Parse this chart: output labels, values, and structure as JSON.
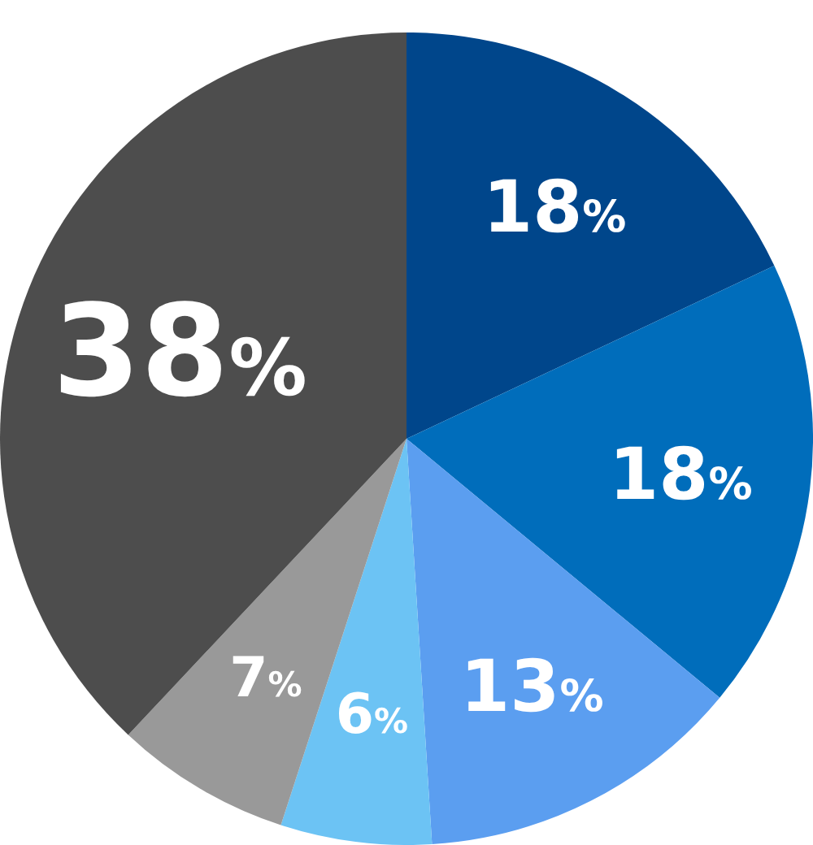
{
  "chart_data": {
    "type": "pie",
    "categories": [
      null,
      null,
      null,
      null,
      null,
      null
    ],
    "values": [
      18,
      18,
      13,
      6,
      7,
      38
    ],
    "colors": [
      "#00468b",
      "#006dbb",
      "#5b9ef0",
      "#6cc3f4",
      "#999999",
      "#4d4d4d"
    ],
    "value_labels": [
      "18%",
      "18%",
      "13%",
      "6%",
      "7%",
      "38%"
    ],
    "legend": false
  }
}
